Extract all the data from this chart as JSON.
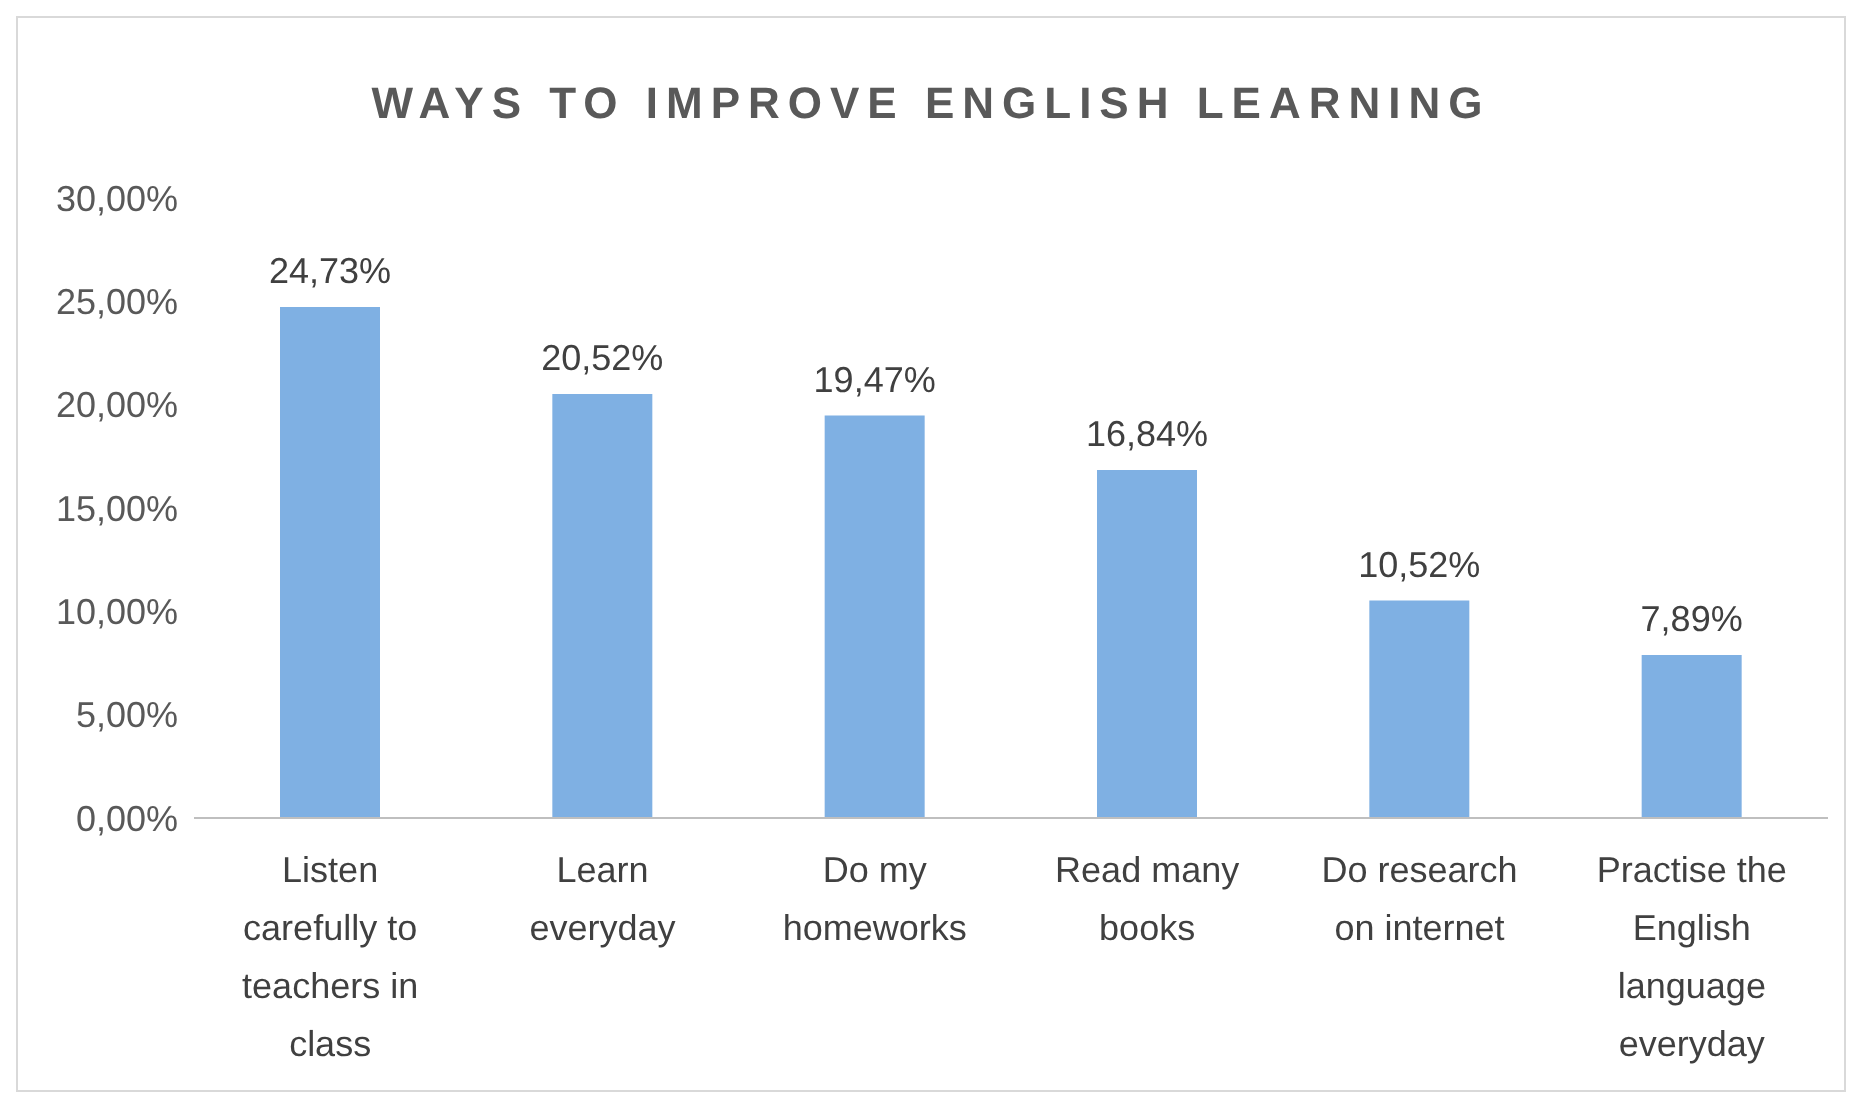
{
  "chart_data": {
    "type": "bar",
    "title": "WAYS TO IMPROVE ENGLISH LEARNING",
    "categories": [
      "Listen carefully to teachers in class",
      "Learn everyday",
      "Do my homeworks",
      "Read many books",
      "Do research on internet",
      "Practise the English language everyday"
    ],
    "values": [
      24.73,
      20.52,
      19.47,
      16.84,
      10.52,
      7.89
    ],
    "value_labels": [
      "24,73%",
      "20,52%",
      "19,47%",
      "16,84%",
      "10,52%",
      "7,89%"
    ],
    "color": "#7fb0e3",
    "ylim": [
      0,
      30
    ],
    "yticks": [
      {
        "value": 0,
        "label": "0,00%"
      },
      {
        "value": 5,
        "label": "5,00%"
      },
      {
        "value": 10,
        "label": "10,00%"
      },
      {
        "value": 15,
        "label": "15,00%"
      },
      {
        "value": 20,
        "label": "20,00%"
      },
      {
        "value": 25,
        "label": "25,00%"
      },
      {
        "value": 30,
        "label": "30,00%"
      }
    ],
    "grid": false,
    "legend": false
  }
}
